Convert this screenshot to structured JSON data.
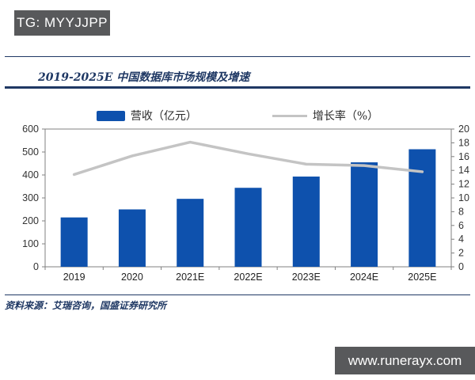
{
  "badges": {
    "tg": "TG: MYYJJPP",
    "watermark": "www.runerayx.com"
  },
  "header": {
    "title": "2019-2025E 中国数据库市场规模及增速"
  },
  "legend": {
    "revenue_label": "营收（亿元）",
    "growth_label": "增长率（%）"
  },
  "footer": {
    "source": "资料来源：艾瑞咨询，国盛证券研究所"
  },
  "colors": {
    "bar": "#0e51ad",
    "line": "#c4c4c4",
    "navy": "#1f3864",
    "badge_gray": "#58595b",
    "axis": "#808080",
    "tick_text": "#333333"
  },
  "chart_data": {
    "type": "bar",
    "title": "2019-2025E 中国数据库市场规模及增速",
    "categories": [
      "2019",
      "2020",
      "2021E",
      "2022E",
      "2023E",
      "2024E",
      "2025E"
    ],
    "series": [
      {
        "name": "营收（亿元）",
        "type": "bar",
        "axis": "left",
        "color": "#0e51ad",
        "values": [
          215,
          250,
          296,
          344,
          393,
          455,
          512
        ]
      },
      {
        "name": "增长率（%）",
        "type": "line",
        "axis": "right",
        "color": "#c4c4c4",
        "values": [
          13.4,
          16.1,
          18.1,
          16.4,
          14.9,
          14.7,
          13.8
        ]
      }
    ],
    "xlabel": "",
    "ylabel_left": "营收（亿元）",
    "ylabel_right": "增长率（%）",
    "left_axis": {
      "min": 0,
      "max": 600,
      "step": 100
    },
    "right_axis": {
      "min": 0,
      "max": 20,
      "step": 2
    },
    "grid": false,
    "legend_position": "top",
    "source": "资料来源：艾瑞咨询，国盛证券研究所"
  }
}
